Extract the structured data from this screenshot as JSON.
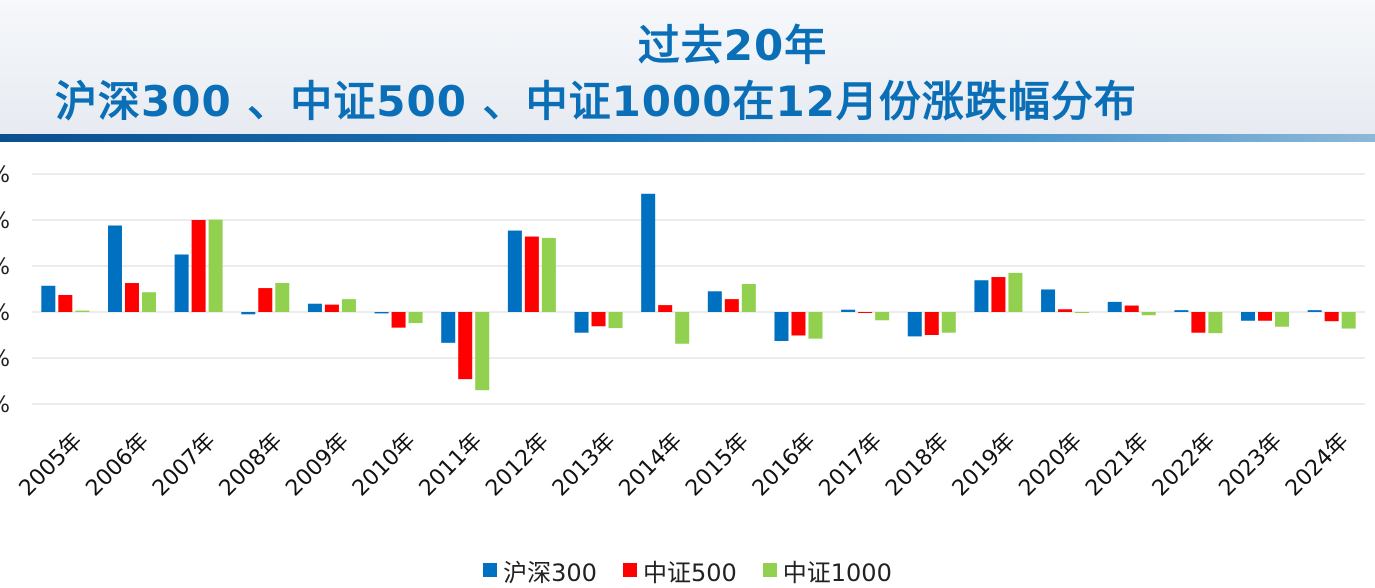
{
  "header": {
    "title_line1": "过去20年",
    "title_line2": "沪深300 、中证500 、中证1000在12月份涨跌幅分布"
  },
  "chart_data": {
    "type": "bar",
    "categories": [
      "2005年",
      "2006年",
      "2007年",
      "2008年",
      "2009年",
      "2010年",
      "2011年",
      "2012年",
      "2013年",
      "2014年",
      "2015年",
      "2016年",
      "2017年",
      "2018年",
      "2019年",
      "2020年",
      "2021年",
      "2022年",
      "2023年",
      "2024年"
    ],
    "series": [
      {
        "name": "沪深300",
        "color": "#0070c0",
        "values": [
          5.7,
          18.8,
          12.5,
          -0.5,
          1.8,
          -0.3,
          -6.7,
          17.7,
          -4.5,
          25.7,
          4.5,
          -6.3,
          0.5,
          -5.3,
          6.9,
          4.9,
          2.2,
          0.4,
          -1.9,
          0.4
        ]
      },
      {
        "name": "中证500",
        "color": "#ff0000",
        "values": [
          3.7,
          6.3,
          20.0,
          5.2,
          1.6,
          -3.4,
          -14.6,
          16.4,
          -3.1,
          1.5,
          2.8,
          -5.1,
          0.0,
          -5.0,
          7.6,
          0.6,
          1.4,
          -4.5,
          -1.9,
          -2.0
        ]
      },
      {
        "name": "中证1000",
        "color": "#92d050",
        "values": [
          0.3,
          4.3,
          20.1,
          6.3,
          2.8,
          -2.4,
          -17.0,
          16.1,
          -3.5,
          -6.9,
          6.1,
          -5.8,
          -1.8,
          -4.5,
          8.5,
          0.0,
          -0.7,
          -4.6,
          -3.2,
          -3.6
        ]
      }
    ],
    "ylim": [
      -20,
      30
    ],
    "yticks": [
      -20,
      -10,
      0,
      10,
      20,
      30
    ],
    "ytick_labels": [
      "%",
      "%",
      "%",
      "%",
      "%",
      "%"
    ],
    "grid": true,
    "legend_position": "bottom"
  }
}
